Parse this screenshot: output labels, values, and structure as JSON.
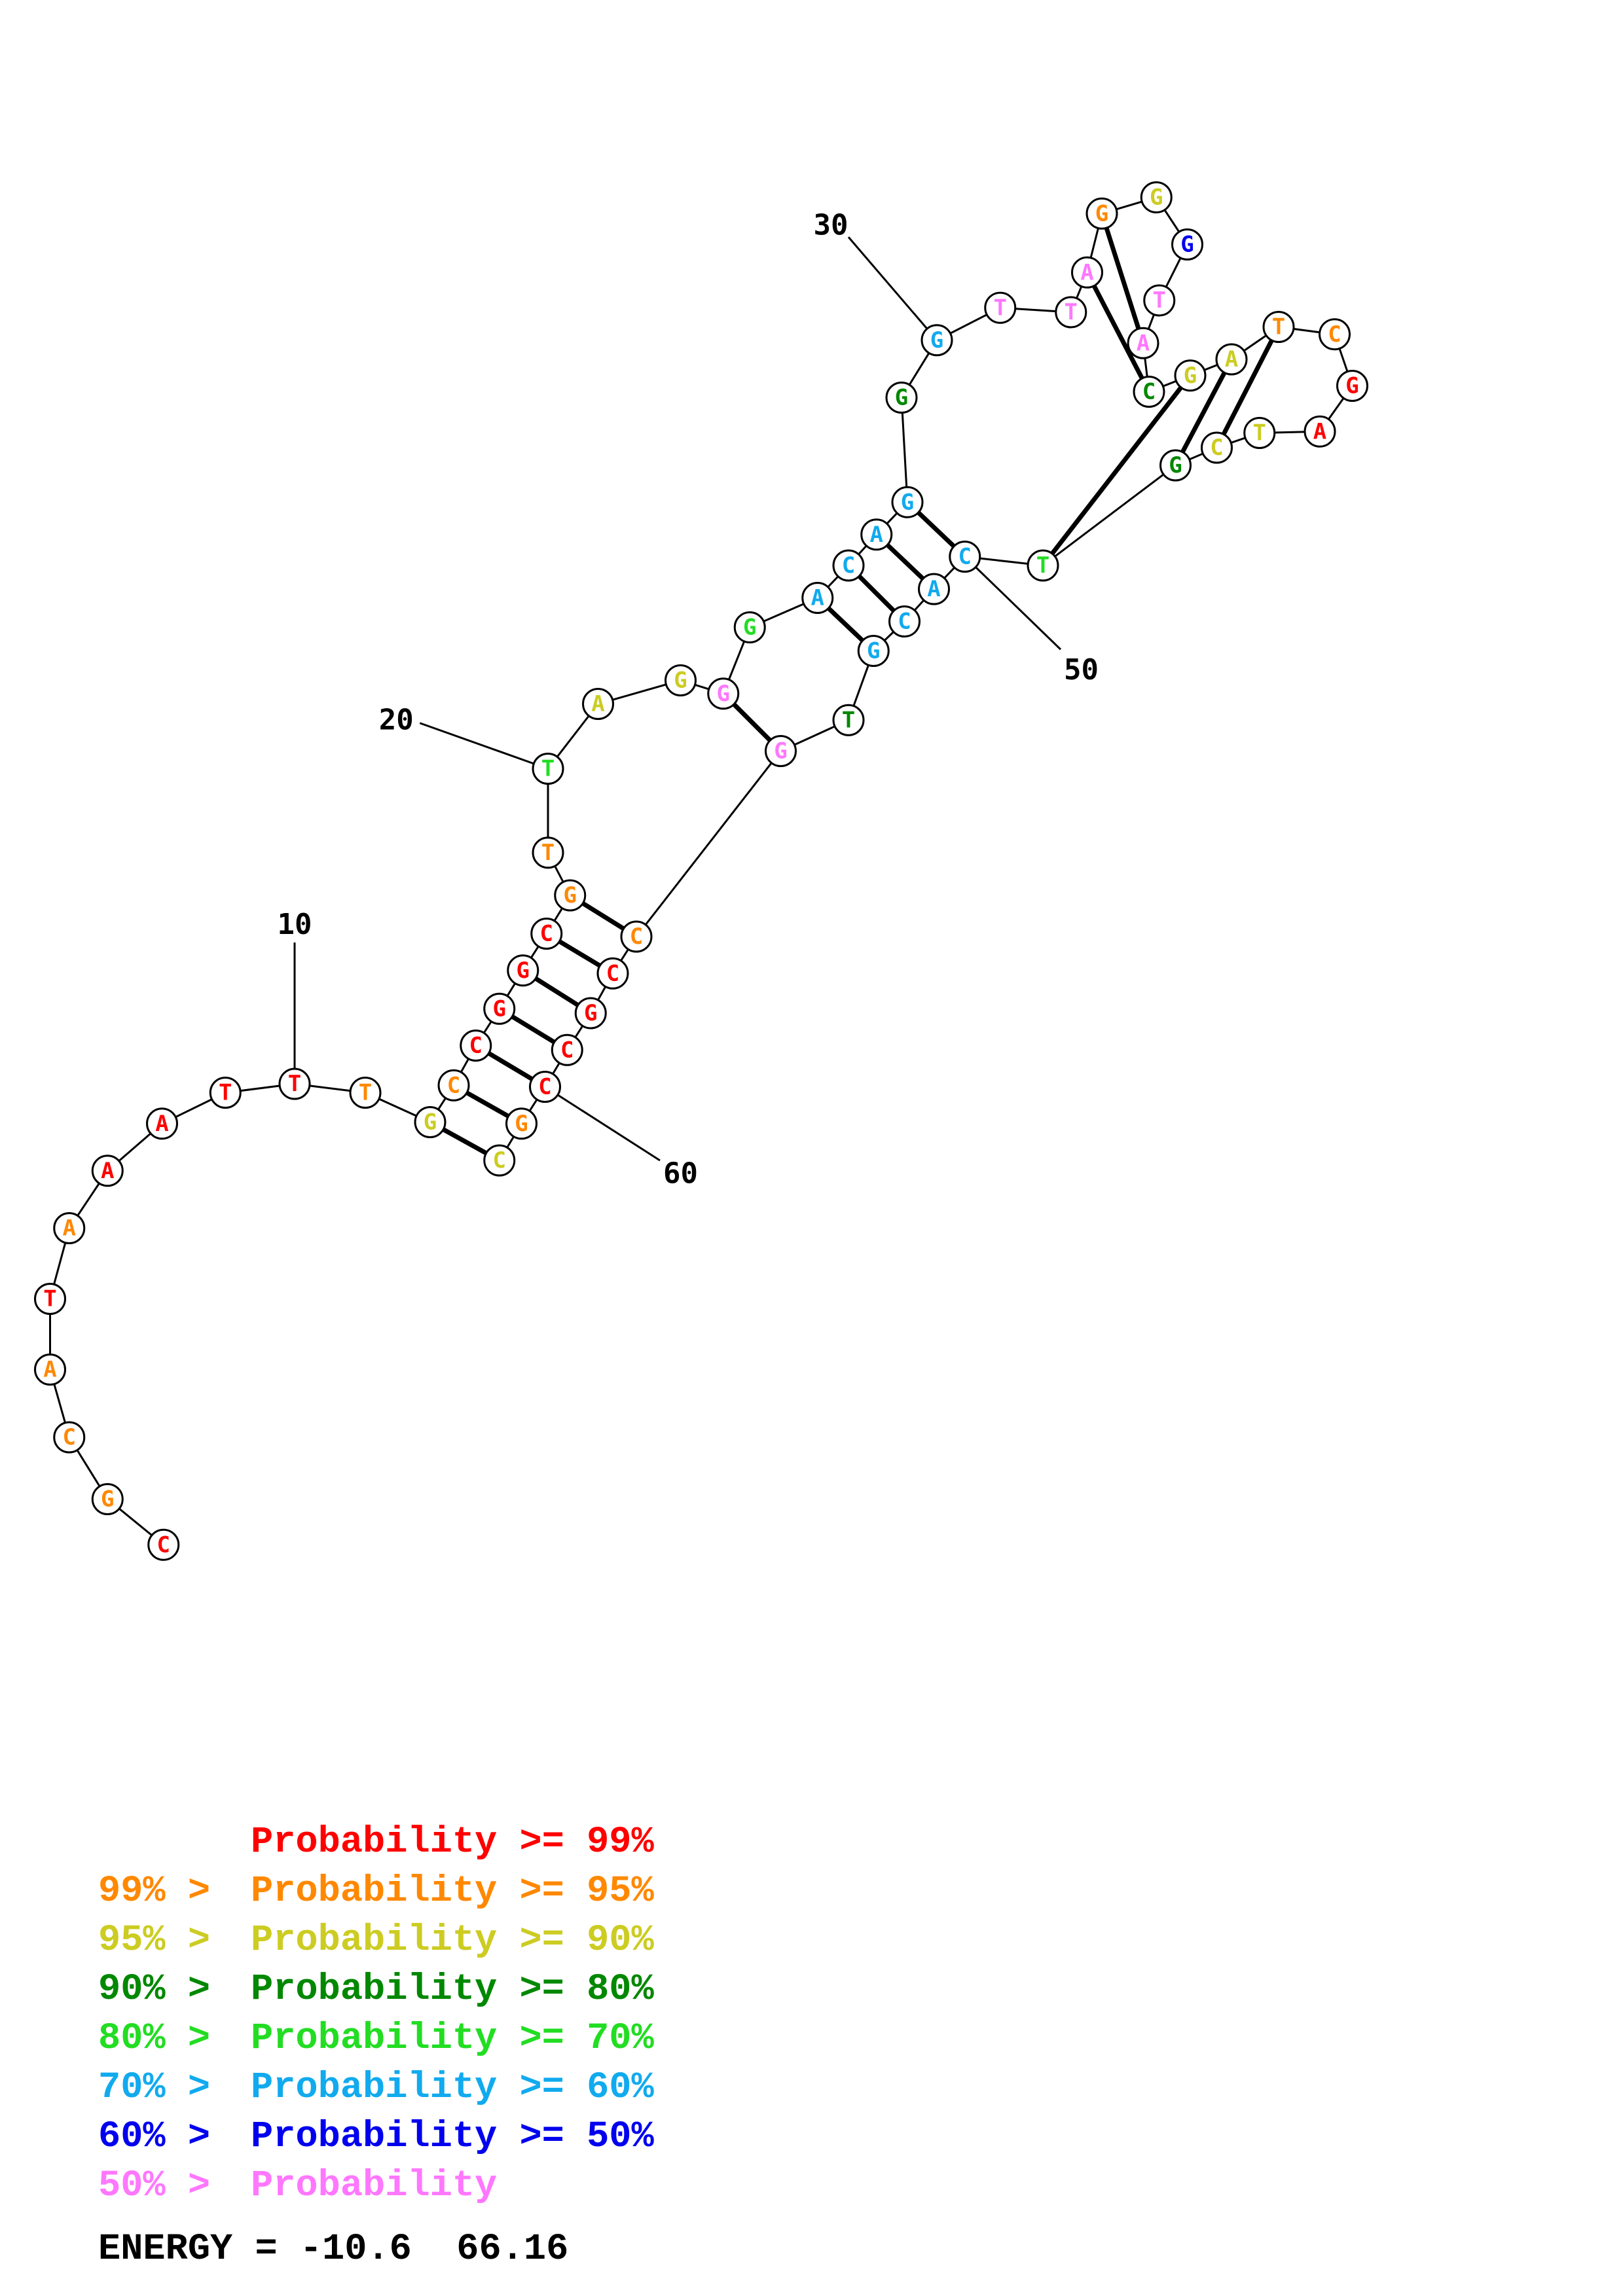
{
  "diagram": {
    "sequence": [
      "C",
      "G",
      "C",
      "A",
      "T",
      "A",
      "A",
      "A",
      "T",
      "T",
      "T",
      "G",
      "C",
      "C",
      "G",
      "G",
      "C",
      "G",
      "T",
      "T",
      "A",
      "G",
      "G",
      "G",
      "A",
      "C",
      "A",
      "G",
      "G",
      "G",
      "T",
      "T",
      "A",
      "G",
      "G",
      "G",
      "T",
      "A",
      "C",
      "G",
      "A",
      "T",
      "C",
      "G",
      "A",
      "T",
      "C",
      "G",
      "T",
      "C",
      "A",
      "C",
      "G",
      "T",
      "G",
      "C",
      "C",
      "G",
      "C",
      "C",
      "G",
      "C"
    ],
    "colors": [
      "#ff0000",
      "#ff8800",
      "#ff8800",
      "#ff8800",
      "#ff0000",
      "#ff8800",
      "#ff0000",
      "#ff0000",
      "#ff0000",
      "#ff0000",
      "#ff8800",
      "#cccc22",
      "#ff8800",
      "#ff0000",
      "#ff0000",
      "#ff0000",
      "#ff0000",
      "#ff8800",
      "#ff8800",
      "#22dd22",
      "#cccc22",
      "#cccc22",
      "#ff77ff",
      "#22dd22",
      "#11aaee",
      "#11aaee",
      "#11aaee",
      "#11aaee",
      "#008800",
      "#11aaee",
      "#ff77ff",
      "#ff77ff",
      "#ff77ff",
      "#ff8800",
      "#cccc22",
      "#0000ee",
      "#ff77ff",
      "#ff77ff",
      "#008800",
      "#cccc22",
      "#cccc22",
      "#ff8800",
      "#ff8800",
      "#ff0000",
      "#ff0000",
      "#cccc22",
      "#cccc22",
      "#008800",
      "#22dd22",
      "#11aaee",
      "#11aaee",
      "#11aaee",
      "#11aaee",
      "#008800",
      "#ff77ff",
      "#ff8800",
      "#ff0000",
      "#ff0000",
      "#ff0000",
      "#ff0000",
      "#ff8800",
      "#cccc22"
    ],
    "pairs": [
      [
        12,
        62
      ],
      [
        13,
        61
      ],
      [
        14,
        60
      ],
      [
        15,
        59
      ],
      [
        16,
        58
      ],
      [
        17,
        57
      ],
      [
        18,
        56
      ],
      [
        23,
        55
      ],
      [
        25,
        53
      ],
      [
        26,
        52
      ],
      [
        27,
        51
      ],
      [
        28,
        50
      ],
      [
        33,
        39
      ],
      [
        34,
        38
      ],
      [
        40,
        49
      ],
      [
        41,
        48
      ],
      [
        42,
        47
      ]
    ],
    "labels": [
      {
        "index": 10,
        "text": "10"
      },
      {
        "index": 20,
        "text": "20"
      },
      {
        "index": 30,
        "text": "30"
      },
      {
        "index": 50,
        "text": "50"
      },
      {
        "index": 60,
        "text": "60"
      }
    ]
  },
  "legend": [
    {
      "range": "",
      "text": "Probability >= 99%",
      "color": "#ff0000"
    },
    {
      "range": "99% >",
      "text": "Probability >= 95%",
      "color": "#ff8800"
    },
    {
      "range": "95% >",
      "text": "Probability >= 90%",
      "color": "#cccc22"
    },
    {
      "range": "90% >",
      "text": "Probability >= 80%",
      "color": "#008800"
    },
    {
      "range": "80% >",
      "text": "Probability >= 70%",
      "color": "#22dd22"
    },
    {
      "range": "70% >",
      "text": "Probability >= 60%",
      "color": "#11aaee"
    },
    {
      "range": "60% >",
      "text": "Probability >= 50%",
      "color": "#0000ee"
    },
    {
      "range": "50% >",
      "text": "Probability",
      "color": "#ff77ff"
    }
  ],
  "energy": {
    "text": "ENERGY = -10.6  66.16"
  }
}
